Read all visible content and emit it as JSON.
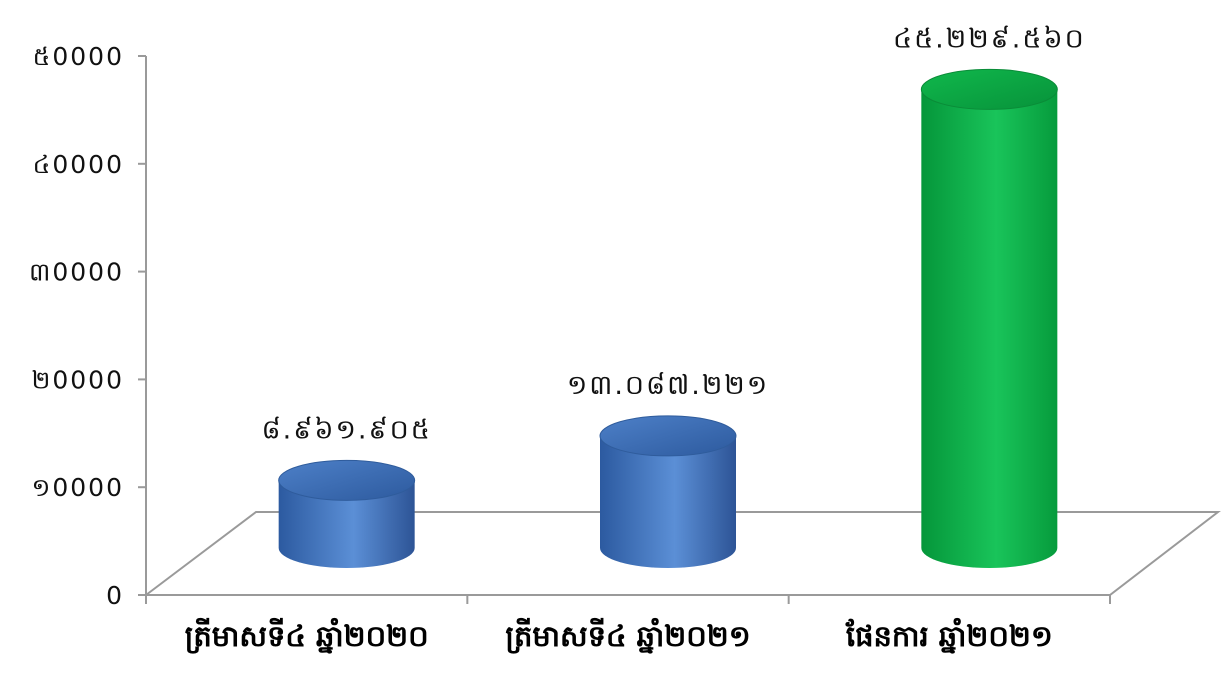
{
  "chart_data": {
    "type": "bar",
    "style": "3d-cylinder",
    "categories": [
      "ត្រីមាសទី៤ ឆ្នាំ២០២០",
      "ត្រីមាសទី៤ ឆ្នាំ២០២១",
      "ផែនការ ឆ្នាំ២០២១"
    ],
    "values": [
      8961.905,
      13087.221,
      45229.56
    ],
    "data_labels": [
      "៨.៩៦១.៩០៥",
      "១៣.០៨៧.២២១",
      "៤៥.២២៩.៥៦០"
    ],
    "bar_colors": [
      "#3f6fb6",
      "#3f6fb6",
      "#0cae45"
    ],
    "ylim": [
      0,
      50000
    ],
    "yticks": [
      0,
      10000,
      20000,
      30000,
      40000,
      50000
    ],
    "ytick_labels": [
      "0",
      "១0000",
      "២0000",
      "៣0000",
      "៤0000",
      "៥0000"
    ],
    "grid": false,
    "legend": "none"
  }
}
